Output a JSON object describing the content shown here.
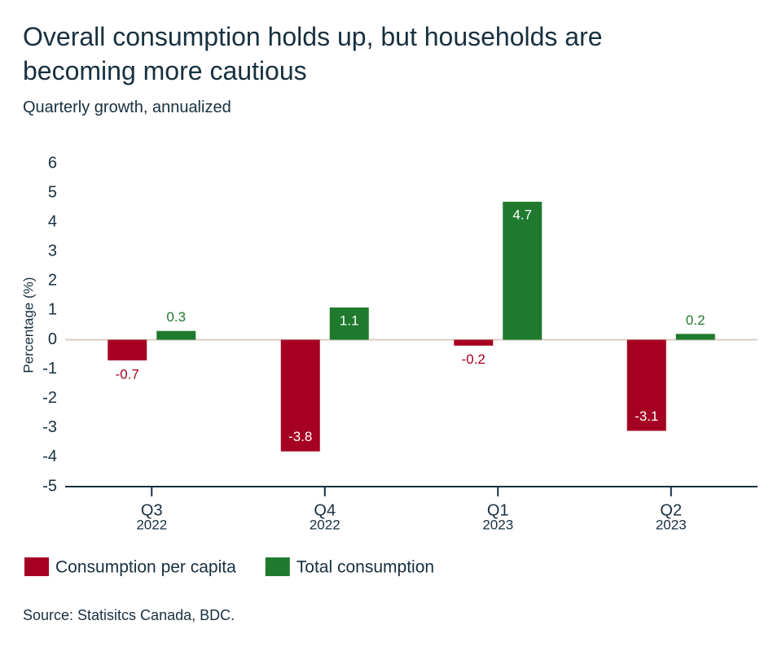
{
  "chart_data": {
    "type": "bar",
    "title": "Overall consumption holds up, but households are becoming more cautious",
    "subtitle": "Quarterly growth, annualized",
    "y_label": "Percentage (%)",
    "source": "Source: Statisitcs Canada, BDC.",
    "categories": [
      [
        "Q3",
        "2022"
      ],
      [
        "Q4",
        "2022"
      ],
      [
        "Q1",
        "2023"
      ],
      [
        "Q2",
        "2023"
      ]
    ],
    "series": [
      {
        "name": "Consumption per capita",
        "color": "#a50021",
        "values": [
          -0.7,
          -3.8,
          -0.2,
          -3.1
        ]
      },
      {
        "name": "Total consumption",
        "color": "#1f7a2e",
        "values": [
          0.3,
          1.1,
          4.7,
          0.2
        ]
      }
    ],
    "ylim": [
      -5,
      6
    ],
    "yticks": [
      -5,
      -4,
      -3,
      -2,
      -1,
      0,
      1,
      2,
      3,
      4,
      5,
      6
    ]
  }
}
